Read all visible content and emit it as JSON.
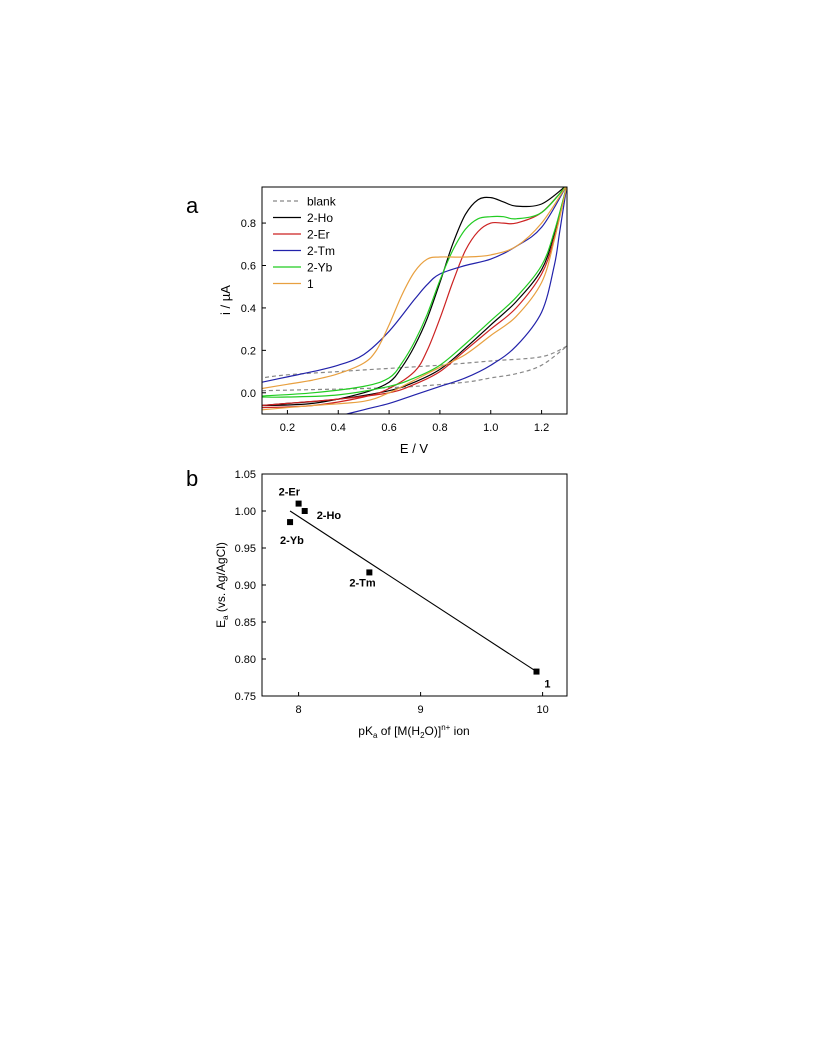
{
  "chart_data": [
    {
      "panel_label": "a",
      "type": "line",
      "xlabel": "E / V",
      "ylabel": "i / µA",
      "xlim": [
        0.1,
        1.3
      ],
      "ylim": [
        -0.1,
        0.97
      ],
      "xticks": [
        "0.2",
        "0.4",
        "0.6",
        "0.8",
        "1.0",
        "1.2"
      ],
      "yticks": [
        "0.0",
        "0.2",
        "0.4",
        "0.6",
        "0.8"
      ],
      "legend_position": "top-left",
      "series": [
        {
          "name": "blank",
          "color": "#888888",
          "dashed": true,
          "forward": [
            [
              0.1,
              0.01
            ],
            [
              0.3,
              0.015
            ],
            [
              0.5,
              0.02
            ],
            [
              0.7,
              0.03
            ],
            [
              0.9,
              0.05
            ],
            [
              1.0,
              0.07
            ],
            [
              1.1,
              0.09
            ],
            [
              1.2,
              0.13
            ],
            [
              1.3,
              0.22
            ]
          ],
          "reverse": [
            [
              1.3,
              0.22
            ],
            [
              1.2,
              0.17
            ],
            [
              1.0,
              0.15
            ],
            [
              0.8,
              0.13
            ],
            [
              0.6,
              0.115
            ],
            [
              0.4,
              0.1
            ],
            [
              0.2,
              0.085
            ],
            [
              0.1,
              0.07
            ]
          ]
        },
        {
          "name": "2-Ho",
          "color": "#000000",
          "dashed": false,
          "forward": [
            [
              0.1,
              -0.06
            ],
            [
              0.3,
              -0.05
            ],
            [
              0.5,
              0.0
            ],
            [
              0.6,
              0.05
            ],
            [
              0.65,
              0.12
            ],
            [
              0.7,
              0.22
            ],
            [
              0.75,
              0.35
            ],
            [
              0.8,
              0.52
            ],
            [
              0.85,
              0.7
            ],
            [
              0.9,
              0.84
            ],
            [
              0.95,
              0.91
            ],
            [
              1.0,
              0.92
            ],
            [
              1.05,
              0.9
            ],
            [
              1.1,
              0.88
            ],
            [
              1.2,
              0.89
            ],
            [
              1.3,
              0.98
            ]
          ],
          "reverse": [
            [
              1.3,
              0.98
            ],
            [
              1.25,
              0.75
            ],
            [
              1.2,
              0.58
            ],
            [
              1.1,
              0.43
            ],
            [
              1.0,
              0.32
            ],
            [
              0.9,
              0.21
            ],
            [
              0.8,
              0.11
            ],
            [
              0.7,
              0.05
            ],
            [
              0.6,
              0.01
            ],
            [
              0.4,
              -0.03
            ],
            [
              0.2,
              -0.05
            ],
            [
              0.1,
              -0.06
            ]
          ]
        },
        {
          "name": "2-Er",
          "color": "#cc2222",
          "dashed": false,
          "forward": [
            [
              0.1,
              -0.07
            ],
            [
              0.3,
              -0.06
            ],
            [
              0.5,
              -0.02
            ],
            [
              0.6,
              0.02
            ],
            [
              0.7,
              0.1
            ],
            [
              0.75,
              0.2
            ],
            [
              0.8,
              0.35
            ],
            [
              0.85,
              0.52
            ],
            [
              0.9,
              0.67
            ],
            [
              0.95,
              0.76
            ],
            [
              1.0,
              0.8
            ],
            [
              1.05,
              0.8
            ],
            [
              1.1,
              0.8
            ],
            [
              1.2,
              0.85
            ],
            [
              1.3,
              0.98
            ]
          ],
          "reverse": [
            [
              1.3,
              0.98
            ],
            [
              1.25,
              0.73
            ],
            [
              1.2,
              0.56
            ],
            [
              1.1,
              0.4
            ],
            [
              1.0,
              0.3
            ],
            [
              0.9,
              0.2
            ],
            [
              0.8,
              0.1
            ],
            [
              0.7,
              0.04
            ],
            [
              0.6,
              0.0
            ],
            [
              0.4,
              -0.03
            ],
            [
              0.2,
              -0.05
            ],
            [
              0.1,
              -0.06
            ]
          ]
        },
        {
          "name": "2-Tm",
          "color": "#2222aa",
          "dashed": false,
          "forward": [
            [
              0.1,
              0.05
            ],
            [
              0.2,
              0.075
            ],
            [
              0.3,
              0.1
            ],
            [
              0.4,
              0.13
            ],
            [
              0.5,
              0.18
            ],
            [
              0.6,
              0.29
            ],
            [
              0.7,
              0.44
            ],
            [
              0.75,
              0.51
            ],
            [
              0.8,
              0.56
            ],
            [
              0.9,
              0.6
            ],
            [
              1.0,
              0.63
            ],
            [
              1.1,
              0.69
            ],
            [
              1.2,
              0.78
            ],
            [
              1.3,
              0.98
            ]
          ],
          "reverse": [
            [
              1.3,
              0.98
            ],
            [
              1.27,
              0.75
            ],
            [
              1.25,
              0.6
            ],
            [
              1.2,
              0.38
            ],
            [
              1.1,
              0.22
            ],
            [
              1.0,
              0.13
            ],
            [
              0.9,
              0.07
            ],
            [
              0.8,
              0.03
            ],
            [
              0.7,
              -0.01
            ],
            [
              0.6,
              -0.05
            ],
            [
              0.5,
              -0.08
            ],
            [
              0.4,
              -0.11
            ]
          ]
        },
        {
          "name": "2-Yb",
          "color": "#22cc22",
          "dashed": false,
          "forward": [
            [
              0.1,
              -0.015
            ],
            [
              0.3,
              0.0
            ],
            [
              0.5,
              0.03
            ],
            [
              0.6,
              0.07
            ],
            [
              0.65,
              0.14
            ],
            [
              0.7,
              0.24
            ],
            [
              0.75,
              0.37
            ],
            [
              0.8,
              0.53
            ],
            [
              0.85,
              0.67
            ],
            [
              0.9,
              0.77
            ],
            [
              0.95,
              0.82
            ],
            [
              1.0,
              0.83
            ],
            [
              1.05,
              0.83
            ],
            [
              1.1,
              0.82
            ],
            [
              1.2,
              0.85
            ],
            [
              1.3,
              0.98
            ]
          ],
          "reverse": [
            [
              1.3,
              0.98
            ],
            [
              1.25,
              0.76
            ],
            [
              1.2,
              0.6
            ],
            [
              1.1,
              0.45
            ],
            [
              1.0,
              0.34
            ],
            [
              0.9,
              0.23
            ],
            [
              0.8,
              0.13
            ],
            [
              0.7,
              0.07
            ],
            [
              0.6,
              0.03
            ],
            [
              0.4,
              -0.01
            ],
            [
              0.2,
              -0.02
            ],
            [
              0.1,
              -0.02
            ]
          ]
        },
        {
          "name": "1",
          "color": "#e8a040",
          "dashed": false,
          "forward": [
            [
              0.1,
              0.02
            ],
            [
              0.2,
              0.04
            ],
            [
              0.3,
              0.06
            ],
            [
              0.4,
              0.09
            ],
            [
              0.5,
              0.14
            ],
            [
              0.55,
              0.2
            ],
            [
              0.6,
              0.32
            ],
            [
              0.65,
              0.46
            ],
            [
              0.7,
              0.57
            ],
            [
              0.75,
              0.63
            ],
            [
              0.8,
              0.64
            ],
            [
              0.9,
              0.64
            ],
            [
              1.0,
              0.65
            ],
            [
              1.1,
              0.69
            ],
            [
              1.2,
              0.8
            ],
            [
              1.3,
              0.98
            ]
          ],
          "reverse": [
            [
              1.3,
              0.98
            ],
            [
              1.25,
              0.72
            ],
            [
              1.2,
              0.52
            ],
            [
              1.1,
              0.36
            ],
            [
              1.0,
              0.27
            ],
            [
              0.9,
              0.18
            ],
            [
              0.8,
              0.12
            ],
            [
              0.7,
              0.06
            ],
            [
              0.6,
              0.0
            ],
            [
              0.5,
              -0.04
            ],
            [
              0.3,
              -0.06
            ],
            [
              0.1,
              -0.08
            ]
          ]
        }
      ]
    },
    {
      "panel_label": "b",
      "type": "scatter",
      "xlabel_parts": [
        "pK",
        "a",
        " of [M(H",
        "2",
        "O)]",
        "n+",
        " ion"
      ],
      "ylabel_parts": [
        "E",
        "a",
        " (vs. Ag/AgCl)"
      ],
      "xlim": [
        7.7,
        10.2
      ],
      "ylim": [
        0.75,
        1.05
      ],
      "xticks": [
        "8",
        "9",
        "10"
      ],
      "yticks": [
        "0.75",
        "0.80",
        "0.85",
        "0.90",
        "0.95",
        "1.00",
        "1.05"
      ],
      "points": [
        {
          "label": "2-Er",
          "x": 8.0,
          "y": 1.01
        },
        {
          "label": "2-Ho",
          "x": 8.05,
          "y": 1.0
        },
        {
          "label": "2-Yb",
          "x": 7.93,
          "y": 0.985
        },
        {
          "label": "2-Tm",
          "x": 8.58,
          "y": 0.917
        },
        {
          "label": "1",
          "x": 9.95,
          "y": 0.783
        }
      ],
      "fit_line": [
        [
          7.93,
          1.0
        ],
        [
          9.95,
          0.783
        ]
      ]
    }
  ]
}
